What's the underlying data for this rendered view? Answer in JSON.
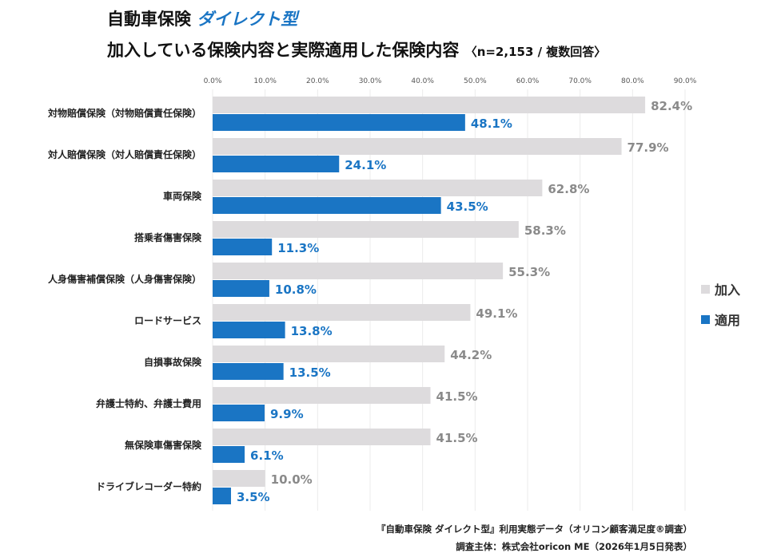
{
  "title": {
    "prefix": "自動車保険",
    "accent": "ダイレクト型"
  },
  "subtitle": {
    "main": "加入している保険内容と実際適用した保険内容",
    "note": "〈n=2,153 / 複数回答〉"
  },
  "footer": {
    "line1": "『自動車保険 ダイレクト型』利用実態データ（オリコン顧客満足度®調査）",
    "line2": "調査主体：株式会社oricon ME（2026年1月5日発表）"
  },
  "chart_data": {
    "type": "bar",
    "orientation": "horizontal",
    "categories": [
      "対物賠償保険（対物賠償責任保険）",
      "対人賠償保険（対人賠償責任保険）",
      "車両保険",
      "搭乗者傷害保険",
      "人身傷害補償保険（人身傷害保険）",
      "ロードサービス",
      "自損事故保険",
      "弁護士特約、弁護士費用",
      "無保険車傷害保険",
      "ドライブレコーダー特約"
    ],
    "series": [
      {
        "name": "加入",
        "color": "#dddbdd",
        "label_color": "#8a8a8a",
        "values": [
          82.4,
          77.9,
          62.8,
          58.3,
          55.3,
          49.1,
          44.2,
          41.5,
          41.5,
          10.0
        ]
      },
      {
        "name": "適用",
        "color": "#1a75c4",
        "label_color": "#1a75c4",
        "values": [
          48.1,
          24.1,
          43.5,
          11.3,
          10.8,
          13.8,
          13.5,
          9.9,
          6.1,
          3.5
        ]
      }
    ],
    "xlim": [
      0,
      90
    ],
    "xticks": [
      "0.0%",
      "10.0%",
      "20.0%",
      "30.0%",
      "40.0%",
      "50.0%",
      "60.0%",
      "70.0%",
      "80.0%",
      "90.0%"
    ],
    "grid": true,
    "legend": "right"
  }
}
